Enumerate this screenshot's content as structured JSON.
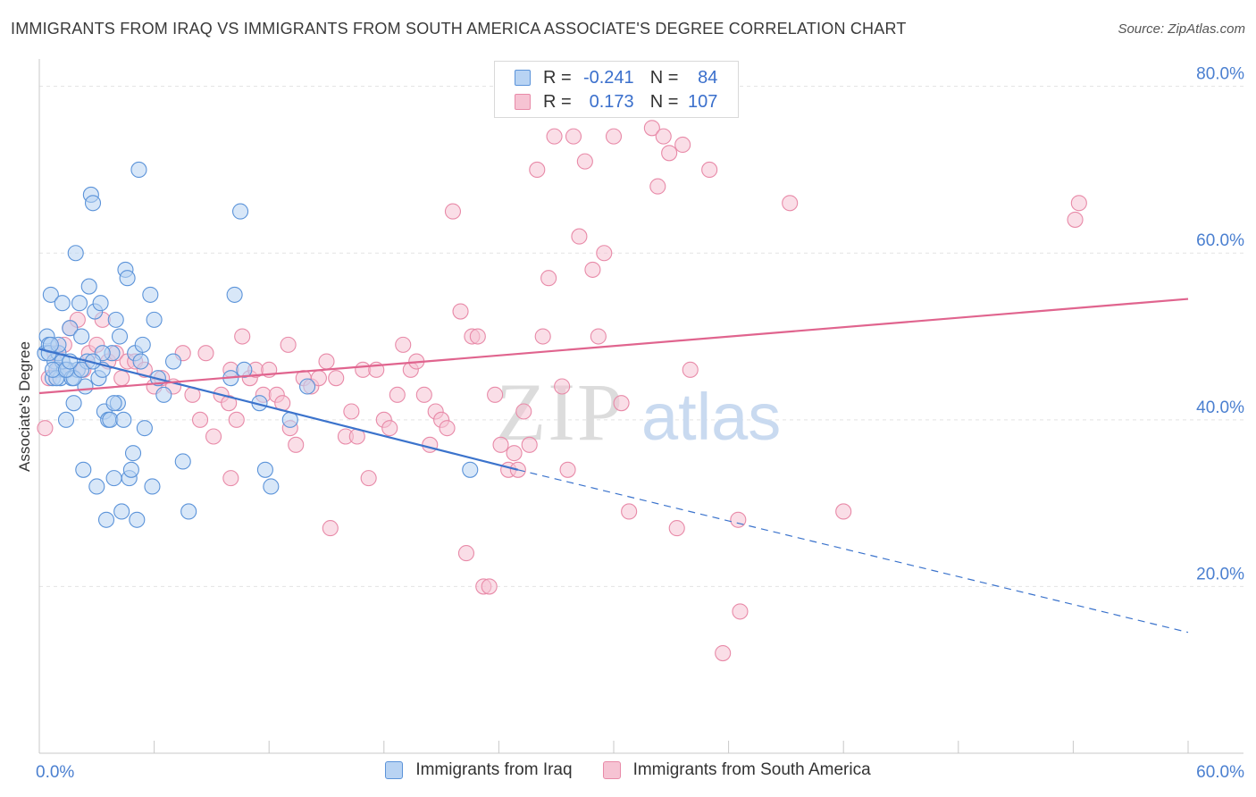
{
  "title": "IMMIGRANTS FROM IRAQ VS IMMIGRANTS FROM SOUTH AMERICA ASSOCIATE'S DEGREE CORRELATION CHART",
  "source": "Source: ZipAtlas.com",
  "watermark": {
    "zip": "ZIP",
    "atlas": "atlas"
  },
  "legend": {
    "iraq": {
      "r_label": "R =",
      "r_value": "-0.241",
      "n_label": "N =",
      "n_value": "84"
    },
    "south_america": {
      "r_label": "R =",
      "r_value": "0.173",
      "n_label": "N =",
      "n_value": "107"
    }
  },
  "colors": {
    "iraq_fill": "#b8d3f3",
    "iraq_stroke": "#5b93d9",
    "iraq_line": "#3b73cc",
    "sa_fill": "#f6c3d3",
    "sa_stroke": "#e88aa8",
    "sa_line": "#e0648e",
    "tick_text": "#4a7fd0",
    "grid": "#e3e3e3"
  },
  "chart_data": {
    "type": "scatter",
    "title": "IMMIGRANTS FROM IRAQ VS IMMIGRANTS FROM SOUTH AMERICA ASSOCIATE'S DEGREE CORRELATION CHART",
    "xlabel": "",
    "ylabel": "Associate's Degree",
    "xlim": [
      0,
      60
    ],
    "ylim": [
      0,
      82
    ],
    "x_ticks": [
      "0.0%",
      "60.0%"
    ],
    "y_ticks": [
      {
        "value": 20,
        "label": "20.0%"
      },
      {
        "value": 40,
        "label": "40.0%"
      },
      {
        "value": 60,
        "label": "60.0%"
      },
      {
        "value": 80,
        "label": "80.0%"
      }
    ],
    "grid": true,
    "legend_position": "bottom",
    "series": [
      {
        "name": "Immigrants from Iraq",
        "trend": {
          "x": [
            0,
            25
          ],
          "y": [
            48.5,
            34.0
          ],
          "dashed_to": {
            "x": 60,
            "y": 14.5
          }
        },
        "points": [
          [
            0.3,
            48
          ],
          [
            0.4,
            50
          ],
          [
            0.5,
            49
          ],
          [
            0.6,
            55
          ],
          [
            0.7,
            45
          ],
          [
            0.8,
            47
          ],
          [
            0.9,
            46
          ],
          [
            1.0,
            48
          ],
          [
            1.1,
            45
          ],
          [
            1.2,
            54
          ],
          [
            1.3,
            46
          ],
          [
            1.4,
            40
          ],
          [
            1.5,
            46
          ],
          [
            1.6,
            51
          ],
          [
            1.7,
            45
          ],
          [
            1.8,
            42
          ],
          [
            1.9,
            60
          ],
          [
            2.0,
            46
          ],
          [
            2.1,
            54
          ],
          [
            2.2,
            50
          ],
          [
            2.3,
            34
          ],
          [
            2.4,
            44
          ],
          [
            2.5,
            47
          ],
          [
            2.6,
            56
          ],
          [
            2.7,
            67
          ],
          [
            2.8,
            66
          ],
          [
            2.9,
            53
          ],
          [
            3.0,
            32
          ],
          [
            3.1,
            45
          ],
          [
            3.2,
            54
          ],
          [
            3.3,
            46
          ],
          [
            3.4,
            41
          ],
          [
            3.5,
            28
          ],
          [
            3.6,
            40
          ],
          [
            3.7,
            40
          ],
          [
            3.8,
            48
          ],
          [
            3.9,
            33
          ],
          [
            4.0,
            52
          ],
          [
            4.1,
            42
          ],
          [
            4.2,
            50
          ],
          [
            4.3,
            29
          ],
          [
            4.4,
            40
          ],
          [
            4.5,
            58
          ],
          [
            4.6,
            57
          ],
          [
            4.7,
            33
          ],
          [
            4.8,
            34
          ],
          [
            4.9,
            36
          ],
          [
            5.0,
            48
          ],
          [
            5.1,
            28
          ],
          [
            5.2,
            70
          ],
          [
            5.3,
            47
          ],
          [
            5.4,
            49
          ],
          [
            5.5,
            39
          ],
          [
            5.8,
            55
          ],
          [
            5.9,
            32
          ],
          [
            6.0,
            52
          ],
          [
            6.2,
            45
          ],
          [
            6.5,
            43
          ],
          [
            7.0,
            47
          ],
          [
            7.5,
            35
          ],
          [
            7.8,
            29
          ],
          [
            10.0,
            45
          ],
          [
            10.2,
            55
          ],
          [
            10.5,
            65
          ],
          [
            10.7,
            46
          ],
          [
            11.5,
            42
          ],
          [
            11.8,
            34
          ],
          [
            12.1,
            32
          ],
          [
            13.1,
            40
          ],
          [
            14.0,
            44
          ],
          [
            22.5,
            34
          ],
          [
            0.5,
            48
          ],
          [
            0.9,
            45
          ],
          [
            1.2,
            47
          ],
          [
            1.8,
            45
          ],
          [
            2.2,
            46
          ],
          [
            0.7,
            46
          ],
          [
            1.0,
            49
          ],
          [
            1.4,
            46
          ],
          [
            1.6,
            47
          ],
          [
            3.3,
            48
          ],
          [
            3.9,
            42
          ],
          [
            0.6,
            49
          ],
          [
            2.8,
            47
          ]
        ]
      },
      {
        "name": "Immigrants from South America",
        "trend": {
          "x": [
            0,
            60
          ],
          "y": [
            43.2,
            54.5
          ]
        },
        "points": [
          [
            0.3,
            39
          ],
          [
            0.5,
            45
          ],
          [
            0.8,
            48
          ],
          [
            1.0,
            46
          ],
          [
            1.3,
            49
          ],
          [
            1.6,
            51
          ],
          [
            2.0,
            52
          ],
          [
            2.3,
            46
          ],
          [
            2.6,
            48
          ],
          [
            3.0,
            49
          ],
          [
            3.3,
            52
          ],
          [
            3.6,
            47
          ],
          [
            4.0,
            48
          ],
          [
            4.3,
            45
          ],
          [
            4.6,
            47
          ],
          [
            5.0,
            47
          ],
          [
            5.5,
            46
          ],
          [
            6.0,
            44
          ],
          [
            6.4,
            45
          ],
          [
            7.0,
            44
          ],
          [
            7.5,
            48
          ],
          [
            8.0,
            43
          ],
          [
            8.4,
            40
          ],
          [
            8.7,
            48
          ],
          [
            9.1,
            38
          ],
          [
            9.5,
            43
          ],
          [
            9.9,
            42
          ],
          [
            10.3,
            40
          ],
          [
            10.0,
            33
          ],
          [
            10.6,
            50
          ],
          [
            11.0,
            45
          ],
          [
            11.3,
            46
          ],
          [
            11.7,
            43
          ],
          [
            12.0,
            46
          ],
          [
            12.4,
            43
          ],
          [
            12.7,
            42
          ],
          [
            13.1,
            39
          ],
          [
            13.4,
            37
          ],
          [
            13.0,
            49
          ],
          [
            13.8,
            45
          ],
          [
            14.2,
            44
          ],
          [
            14.6,
            45
          ],
          [
            15.0,
            47
          ],
          [
            15.2,
            27
          ],
          [
            15.5,
            45
          ],
          [
            16.0,
            38
          ],
          [
            16.3,
            41
          ],
          [
            16.6,
            38
          ],
          [
            16.9,
            46
          ],
          [
            17.2,
            33
          ],
          [
            17.6,
            46
          ],
          [
            18.0,
            40
          ],
          [
            18.3,
            39
          ],
          [
            18.7,
            43
          ],
          [
            19.0,
            49
          ],
          [
            19.4,
            46
          ],
          [
            19.7,
            47
          ],
          [
            20.1,
            43
          ],
          [
            20.4,
            37
          ],
          [
            20.7,
            41
          ],
          [
            21.0,
            40
          ],
          [
            21.3,
            39
          ],
          [
            21.6,
            65
          ],
          [
            22.0,
            53
          ],
          [
            22.3,
            24
          ],
          [
            22.6,
            50
          ],
          [
            22.9,
            50
          ],
          [
            23.2,
            20
          ],
          [
            23.5,
            20
          ],
          [
            23.8,
            43
          ],
          [
            24.1,
            37
          ],
          [
            24.5,
            34
          ],
          [
            24.8,
            36
          ],
          [
            25.0,
            34
          ],
          [
            25.3,
            41
          ],
          [
            25.6,
            37
          ],
          [
            26.0,
            70
          ],
          [
            26.3,
            50
          ],
          [
            26.6,
            57
          ],
          [
            26.9,
            74
          ],
          [
            27.3,
            44
          ],
          [
            27.6,
            34
          ],
          [
            27.9,
            74
          ],
          [
            28.2,
            62
          ],
          [
            28.5,
            71
          ],
          [
            28.9,
            58
          ],
          [
            29.2,
            50
          ],
          [
            29.5,
            60
          ],
          [
            30.0,
            74
          ],
          [
            30.4,
            42
          ],
          [
            30.8,
            29
          ],
          [
            32.0,
            75
          ],
          [
            32.3,
            68
          ],
          [
            32.6,
            74
          ],
          [
            32.9,
            72
          ],
          [
            33.3,
            27
          ],
          [
            33.6,
            73
          ],
          [
            34.0,
            46
          ],
          [
            35.0,
            70
          ],
          [
            35.7,
            12
          ],
          [
            36.5,
            28
          ],
          [
            36.6,
            17
          ],
          [
            39.2,
            66
          ],
          [
            42.0,
            29
          ],
          [
            54.1,
            64
          ],
          [
            54.3,
            66
          ],
          [
            10.0,
            46
          ]
        ]
      }
    ]
  },
  "axis": {
    "ylabel": "Associate's Degree"
  },
  "bottom_legend": {
    "iraq": "Immigrants from Iraq",
    "south_america": "Immigrants from South America"
  }
}
